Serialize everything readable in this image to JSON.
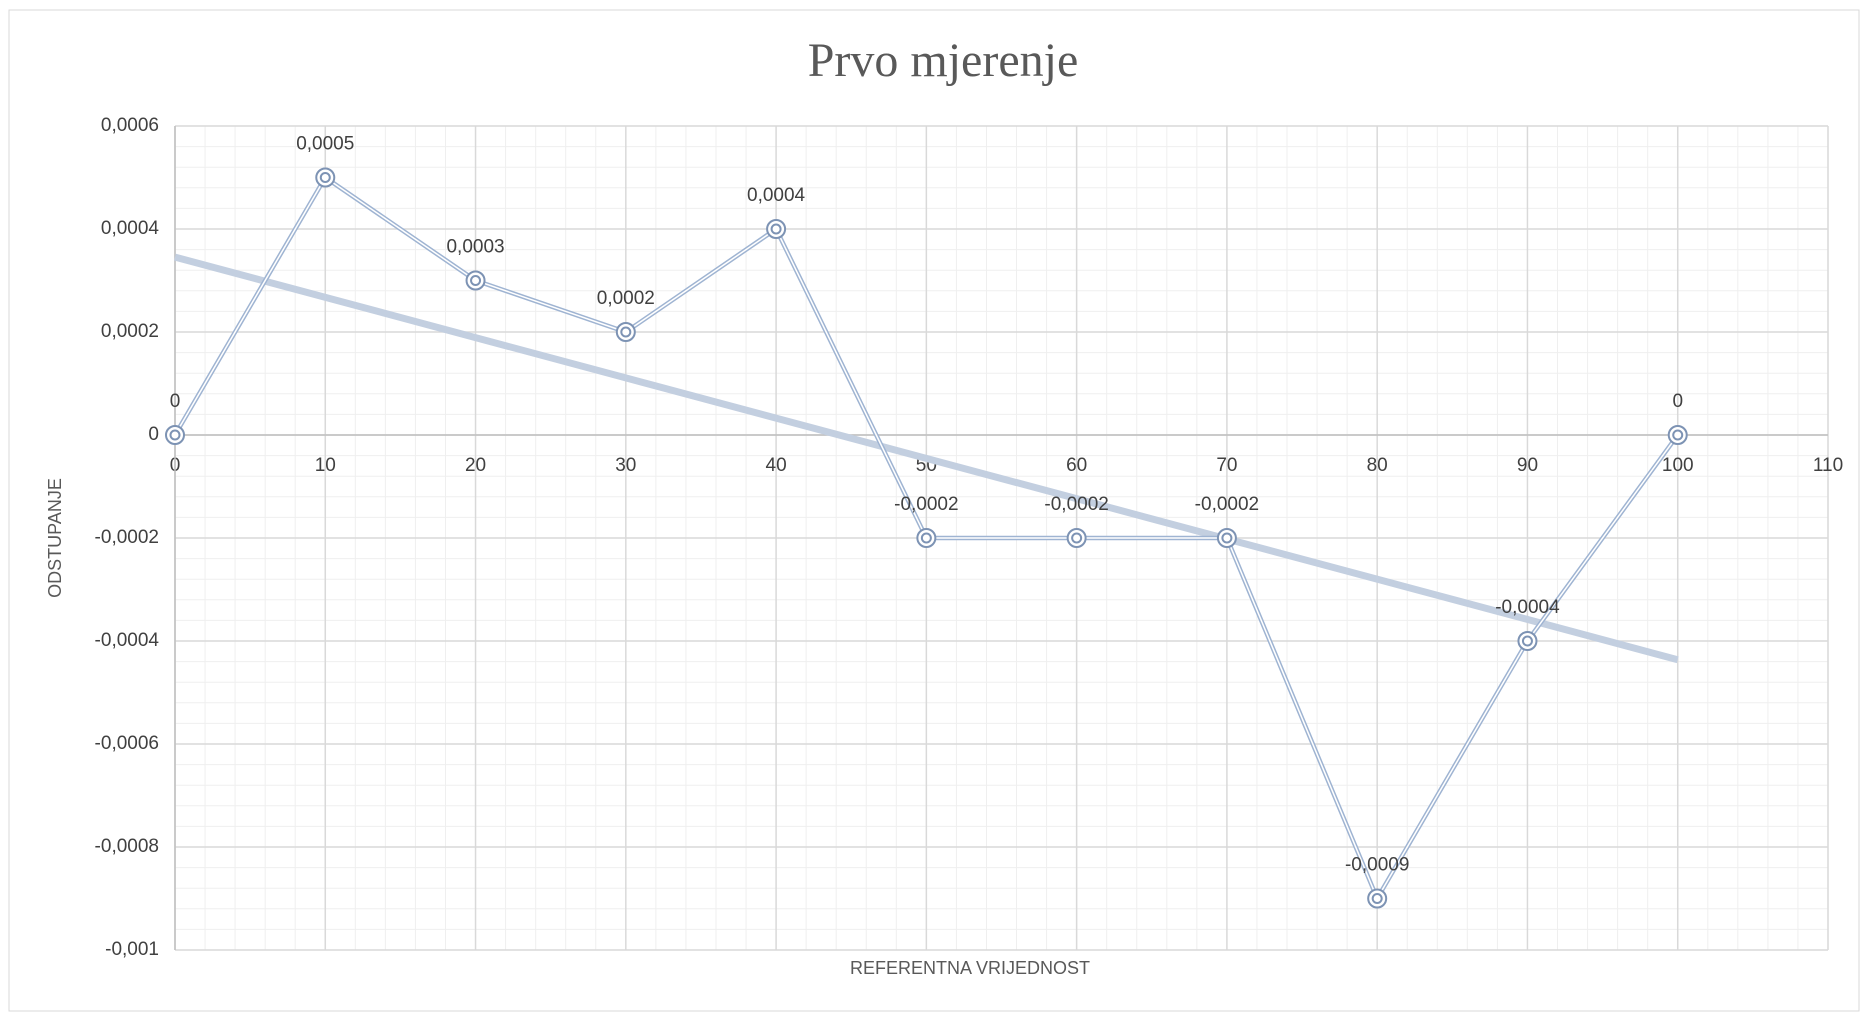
{
  "chart_data": {
    "type": "line",
    "title": "Prvo mjerenje",
    "x_label": "REFERENTNA VRIJEDNOST",
    "y_label": "ODSTUPANJE",
    "x": [
      0,
      10,
      20,
      30,
      40,
      50,
      60,
      70,
      80,
      90,
      100
    ],
    "series": [
      {
        "color": "#9fb4d2",
        "values": [
          0,
          0.0005,
          0.0003,
          0.0002,
          0.0004,
          -0.0002,
          -0.0002,
          -0.0002,
          -0.0009,
          -0.0004,
          0
        ],
        "value_labels": [
          "0",
          "0,0005",
          "0,0003",
          "0,0002",
          "0,0004",
          "-0,0002",
          "-0,0002",
          "-0,0002",
          "-0,0009",
          "-0,0004",
          "0"
        ]
      }
    ],
    "trendline": "linear",
    "trendline_color": "#c3cfe0",
    "xlim": [
      0,
      110
    ],
    "xticks": [
      0,
      10,
      20,
      30,
      40,
      50,
      60,
      70,
      80,
      90,
      100,
      110
    ],
    "ylim": [
      -0.001,
      0.0006
    ],
    "yticks": [
      {
        "value": -0.001,
        "label": "-0,001"
      },
      {
        "value": -0.0008,
        "label": "-0,0008"
      },
      {
        "value": -0.0006,
        "label": "-0,0006"
      },
      {
        "value": -0.0004,
        "label": "-0,0004"
      },
      {
        "value": -0.0002,
        "label": "-0,0002"
      },
      0,
      {
        "value": 0.0002,
        "label": "0,0002"
      },
      {
        "value": 0.0004,
        "label": "0,0004"
      },
      {
        "value": 0.0006,
        "label": "0,0006"
      }
    ],
    "grid": true,
    "minor_grid": true
  }
}
